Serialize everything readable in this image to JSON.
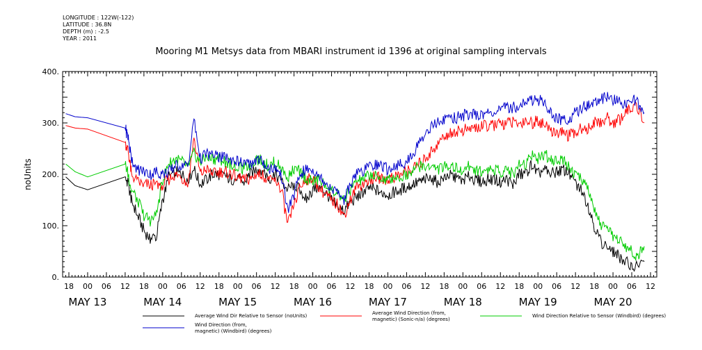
{
  "metadata": {
    "longitude": "LONGITUDE : 122W(-122)",
    "latitude": "LATITUDE : 36.8N",
    "depth": "DEPTH (m) : -2.5",
    "year": "YEAR : 2011"
  },
  "chart_data": {
    "type": "line",
    "title": "Mooring M1 Metsys data from MBARI instrument id 1396 at original sampling intervals",
    "ylabel": "noUnits",
    "xlabel": "",
    "ylim": [
      0,
      400
    ],
    "yticks": [
      0,
      100,
      200,
      300,
      400
    ],
    "ytick_labels": [
      "0.",
      "100.",
      "200.",
      "300.",
      "400."
    ],
    "xlim_hours": [
      -8,
      182
    ],
    "hour_ticks": [
      {
        "h": -6,
        "label": "18"
      },
      {
        "h": 0,
        "label": "00"
      },
      {
        "h": 6,
        "label": "06"
      },
      {
        "h": 12,
        "label": "12"
      },
      {
        "h": 18,
        "label": "18"
      },
      {
        "h": 24,
        "label": "00"
      },
      {
        "h": 30,
        "label": "06"
      },
      {
        "h": 36,
        "label": "12"
      },
      {
        "h": 42,
        "label": "18"
      },
      {
        "h": 48,
        "label": "00"
      },
      {
        "h": 54,
        "label": "06"
      },
      {
        "h": 60,
        "label": "12"
      },
      {
        "h": 66,
        "label": "18"
      },
      {
        "h": 72,
        "label": "00"
      },
      {
        "h": 78,
        "label": "06"
      },
      {
        "h": 84,
        "label": "12"
      },
      {
        "h": 90,
        "label": "18"
      },
      {
        "h": 96,
        "label": "00"
      },
      {
        "h": 102,
        "label": "06"
      },
      {
        "h": 108,
        "label": "12"
      },
      {
        "h": 114,
        "label": "18"
      },
      {
        "h": 120,
        "label": "00"
      },
      {
        "h": 126,
        "label": "06"
      },
      {
        "h": 132,
        "label": "12"
      },
      {
        "h": 138,
        "label": "18"
      },
      {
        "h": 144,
        "label": "00"
      },
      {
        "h": 150,
        "label": "06"
      },
      {
        "h": 156,
        "label": "12"
      },
      {
        "h": 162,
        "label": "18"
      },
      {
        "h": 168,
        "label": "00"
      },
      {
        "h": 174,
        "label": "06"
      },
      {
        "h": 180,
        "label": "12"
      }
    ],
    "day_labels": [
      {
        "h": 0,
        "label": "MAY 13"
      },
      {
        "h": 24,
        "label": "MAY 14"
      },
      {
        "h": 48,
        "label": "MAY 15"
      },
      {
        "h": 72,
        "label": "MAY 16"
      },
      {
        "h": 96,
        "label": "MAY 17"
      },
      {
        "h": 120,
        "label": "MAY 18"
      },
      {
        "h": 144,
        "label": "MAY 19"
      },
      {
        "h": 168,
        "label": "MAY 20"
      }
    ],
    "x_unit": "hours from MAY 13 00:00 (2011)",
    "series": [
      {
        "name": "Average Wind Dir Relative to Sensor (noUnits)",
        "color": "#000000",
        "x": [
          -7,
          -4,
          0,
          12,
          13,
          14,
          16,
          18,
          20,
          22,
          24,
          26,
          28,
          30,
          32,
          34,
          36,
          38,
          40,
          42,
          44,
          46,
          48,
          50,
          52,
          54,
          56,
          58,
          60,
          62,
          64,
          66,
          68,
          70,
          72,
          74,
          76,
          78,
          80,
          82,
          84,
          86,
          88,
          90,
          92,
          94,
          96,
          98,
          100,
          102,
          104,
          106,
          108,
          110,
          112,
          114,
          116,
          118,
          120,
          122,
          124,
          126,
          128,
          130,
          132,
          134,
          136,
          138,
          140,
          142,
          144,
          146,
          148,
          150,
          152,
          154,
          156,
          158,
          160,
          162,
          164,
          166,
          168,
          170,
          172,
          174,
          176,
          178
        ],
        "values": [
          195,
          178,
          170,
          195,
          180,
          150,
          120,
          90,
          75,
          80,
          150,
          195,
          205,
          200,
          190,
          210,
          180,
          190,
          200,
          200,
          195,
          190,
          190,
          185,
          200,
          210,
          210,
          190,
          200,
          185,
          170,
          180,
          170,
          150,
          170,
          175,
          165,
          150,
          135,
          130,
          145,
          155,
          165,
          175,
          170,
          165,
          160,
          165,
          170,
          175,
          180,
          185,
          190,
          190,
          185,
          195,
          200,
          190,
          190,
          195,
          190,
          185,
          190,
          190,
          185,
          190,
          180,
          200,
          200,
          220,
          200,
          210,
          200,
          205,
          210,
          200,
          180,
          170,
          140,
          100,
          70,
          60,
          50,
          40,
          30,
          20,
          20,
          30
        ]
      },
      {
        "name": "Average Wind Direction (from, magnetic) (Sonic-n/a) (degrees)",
        "color": "#ff0000",
        "x": [
          -7,
          -4,
          0,
          12,
          13,
          14,
          16,
          18,
          20,
          22,
          24,
          26,
          28,
          30,
          32,
          34,
          36,
          38,
          40,
          42,
          44,
          46,
          48,
          50,
          52,
          54,
          56,
          58,
          60,
          62,
          64,
          66,
          68,
          70,
          72,
          74,
          76,
          78,
          80,
          82,
          84,
          86,
          88,
          90,
          92,
          94,
          96,
          98,
          100,
          102,
          104,
          106,
          108,
          110,
          112,
          114,
          116,
          118,
          120,
          122,
          124,
          126,
          128,
          130,
          132,
          134,
          136,
          138,
          140,
          142,
          144,
          146,
          148,
          150,
          152,
          154,
          156,
          158,
          160,
          162,
          164,
          166,
          168,
          170,
          172,
          174,
          176,
          178
        ],
        "values": [
          295,
          290,
          288,
          262,
          245,
          200,
          185,
          180,
          180,
          180,
          180,
          190,
          200,
          195,
          180,
          270,
          200,
          210,
          200,
          205,
          205,
          200,
          195,
          190,
          190,
          200,
          200,
          185,
          190,
          170,
          100,
          140,
          175,
          190,
          190,
          175,
          160,
          150,
          140,
          120,
          150,
          175,
          180,
          190,
          195,
          190,
          190,
          195,
          200,
          205,
          210,
          220,
          230,
          245,
          260,
          275,
          280,
          285,
          285,
          290,
          290,
          292,
          295,
          295,
          298,
          300,
          300,
          300,
          305,
          300,
          305,
          295,
          285,
          280,
          280,
          275,
          280,
          290,
          290,
          300,
          300,
          310,
          300,
          305,
          320,
          330,
          330,
          300
        ]
      },
      {
        "name": "Wind Direction Relative to Sensor (Windbird) (degrees)",
        "color": "#00cc00",
        "x": [
          -7,
          -4,
          0,
          12,
          13,
          14,
          16,
          18,
          20,
          22,
          24,
          26,
          28,
          30,
          32,
          34,
          36,
          38,
          40,
          42,
          44,
          46,
          48,
          50,
          52,
          54,
          56,
          58,
          60,
          62,
          64,
          66,
          68,
          70,
          72,
          74,
          76,
          78,
          80,
          82,
          84,
          86,
          88,
          90,
          92,
          94,
          96,
          98,
          100,
          102,
          104,
          106,
          108,
          110,
          112,
          114,
          116,
          118,
          120,
          122,
          124,
          126,
          128,
          130,
          132,
          134,
          136,
          138,
          140,
          142,
          144,
          146,
          148,
          150,
          152,
          154,
          156,
          158,
          160,
          162,
          164,
          166,
          168,
          170,
          172,
          174,
          176,
          178
        ],
        "values": [
          220,
          205,
          195,
          220,
          200,
          170,
          150,
          120,
          110,
          120,
          190,
          220,
          230,
          225,
          215,
          240,
          225,
          230,
          230,
          230,
          225,
          220,
          215,
          210,
          220,
          230,
          225,
          215,
          225,
          210,
          195,
          210,
          205,
          190,
          185,
          190,
          180,
          170,
          160,
          150,
          170,
          185,
          190,
          200,
          195,
          190,
          190,
          195,
          195,
          200,
          210,
          215,
          215,
          215,
          210,
          215,
          220,
          210,
          210,
          215,
          210,
          205,
          210,
          210,
          205,
          210,
          200,
          220,
          220,
          240,
          230,
          240,
          230,
          225,
          230,
          215,
          200,
          190,
          170,
          130,
          100,
          90,
          80,
          70,
          60,
          50,
          40,
          60
        ]
      },
      {
        "name": "Wind Direction (from, magnetic) (Windbird) (degrees)",
        "color": "#0000cc",
        "x": [
          -7,
          -4,
          0,
          12,
          13,
          14,
          16,
          18,
          20,
          22,
          24,
          26,
          28,
          30,
          32,
          34,
          36,
          38,
          40,
          42,
          44,
          46,
          48,
          50,
          52,
          54,
          56,
          58,
          60,
          62,
          64,
          66,
          68,
          70,
          72,
          74,
          76,
          78,
          80,
          82,
          84,
          86,
          88,
          90,
          92,
          94,
          96,
          98,
          100,
          102,
          104,
          106,
          108,
          110,
          112,
          114,
          116,
          118,
          120,
          122,
          124,
          126,
          128,
          130,
          132,
          134,
          136,
          138,
          140,
          142,
          144,
          146,
          148,
          150,
          152,
          154,
          156,
          158,
          160,
          162,
          164,
          166,
          168,
          170,
          172,
          174,
          176,
          178
        ],
        "values": [
          318,
          312,
          310,
          290,
          270,
          230,
          210,
          205,
          200,
          205,
          200,
          205,
          215,
          220,
          215,
          305,
          230,
          240,
          235,
          235,
          230,
          230,
          225,
          220,
          220,
          230,
          225,
          210,
          215,
          195,
          130,
          160,
          200,
          210,
          210,
          200,
          185,
          175,
          165,
          150,
          180,
          200,
          205,
          215,
          220,
          215,
          210,
          215,
          220,
          225,
          240,
          260,
          280,
          295,
          300,
          305,
          310,
          310,
          315,
          315,
          315,
          318,
          320,
          322,
          325,
          330,
          330,
          335,
          340,
          345,
          345,
          340,
          320,
          310,
          305,
          310,
          320,
          330,
          335,
          340,
          345,
          350,
          345,
          340,
          340,
          345,
          340,
          320
        ]
      }
    ],
    "legend_placement": "bottom",
    "legend": [
      {
        "lines": [
          "Average Wind Dir Relative to Sensor (noUnits)"
        ],
        "color": "#000000"
      },
      {
        "lines": [
          "Average Wind Direction (from,",
          "magnetic) (Sonic-n/a) (degrees)"
        ],
        "color": "#ff0000"
      },
      {
        "lines": [
          "Wind Direction Relative to Sensor (Windbird) (degrees)"
        ],
        "color": "#00cc00"
      },
      {
        "lines": [
          "Wind Direction (from,",
          "magnetic) (Windbird) (degrees)"
        ],
        "color": "#0000cc"
      }
    ]
  }
}
